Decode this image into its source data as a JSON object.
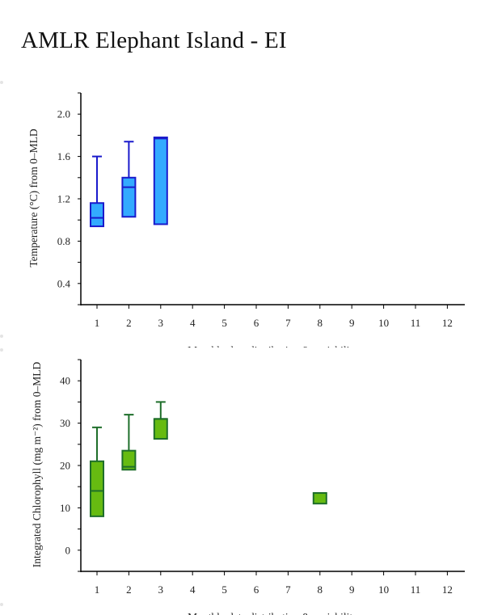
{
  "page": {
    "title": "AMLR Elephant Island - EI"
  },
  "chart_data": [
    {
      "type": "box",
      "ylabel": "Temperature (°C) from 0–MLD",
      "xlabel": "Monthly data distribution & variability",
      "categories": [
        "1",
        "2",
        "3",
        "4",
        "5",
        "6",
        "7",
        "8",
        "9",
        "10",
        "11",
        "12"
      ],
      "y_ticks": [
        "0.4",
        "0.8",
        "1.2",
        "1.6",
        "2.0"
      ],
      "y_tick_values": [
        0.4,
        0.8,
        1.2,
        1.6,
        2.0
      ],
      "ylim": [
        0.2,
        2.2
      ],
      "grid": false,
      "colors": {
        "fill": "#33aaff",
        "stroke": "#1a1acc"
      },
      "boxes": [
        {
          "month": 1,
          "min": 0.94,
          "q1": 0.94,
          "median": 1.02,
          "q3": 1.16,
          "max": 1.6
        },
        {
          "month": 2,
          "min": 1.03,
          "q1": 1.03,
          "median": 1.31,
          "q3": 1.4,
          "max": 1.74
        },
        {
          "month": 3,
          "min": 0.96,
          "q1": 0.96,
          "median": 1.77,
          "q3": 1.78,
          "max": 1.78
        }
      ]
    },
    {
      "type": "box",
      "ylabel": "Integrated Chlorophyll (mg m⁻²) from 0–MLD",
      "xlabel": "Monthly data distribution & variability",
      "categories": [
        "1",
        "2",
        "3",
        "4",
        "5",
        "6",
        "7",
        "8",
        "9",
        "10",
        "11",
        "12"
      ],
      "y_ticks": [
        "0",
        "10",
        "20",
        "30",
        "40"
      ],
      "y_tick_values": [
        0,
        10,
        20,
        30,
        40
      ],
      "ylim": [
        -5,
        45
      ],
      "grid": false,
      "colors": {
        "fill": "#66bb11",
        "stroke": "#1e6e2a"
      },
      "boxes": [
        {
          "month": 1,
          "min": 8,
          "q1": 8,
          "median": 14,
          "q3": 21,
          "max": 29
        },
        {
          "month": 2,
          "min": 19,
          "q1": 19,
          "median": 19.7,
          "q3": 23.5,
          "max": 32
        },
        {
          "month": 3,
          "min": 26.3,
          "q1": 26.3,
          "median": 31,
          "q3": 31,
          "max": 35
        },
        {
          "month": 8,
          "min": 11,
          "q1": 11,
          "median": 13.5,
          "q3": 13.5,
          "max": 13.5
        }
      ]
    }
  ]
}
